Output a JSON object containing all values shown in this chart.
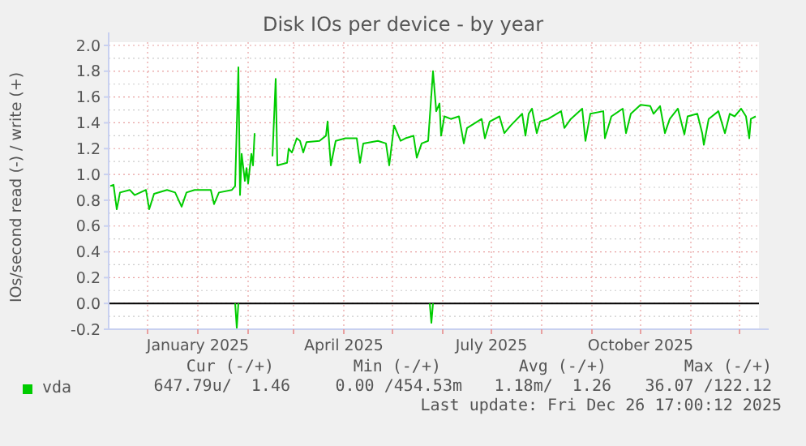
{
  "chart_data": {
    "type": "line",
    "title": "Disk IOs per device - by year",
    "ylabel": "IOs/second read (-) / write (+)",
    "xlim": [
      "2024-11-07",
      "2025-12-13"
    ],
    "ylim": [
      -0.2,
      2.0
    ],
    "yticks": [
      {
        "value": -0.2,
        "label": "-0.2"
      },
      {
        "value": 0,
        "label": "0.0"
      },
      0.2,
      0.4,
      0.6,
      0.8,
      {
        "value": 1,
        "label": "1.0"
      },
      1.2,
      1.4,
      1.6,
      1.8,
      {
        "value": 2,
        "label": "2.0"
      }
    ],
    "xticks": [
      {
        "value": "2024-12-01",
        "label": null
      },
      {
        "value": "2025-01-01",
        "label": "January 2025"
      },
      {
        "value": "2025-02-01",
        "label": null
      },
      {
        "value": "2025-03-01",
        "label": null
      },
      {
        "value": "2025-04-01",
        "label": "April 2025"
      },
      {
        "value": "2025-05-01",
        "label": null
      },
      {
        "value": "2025-06-01",
        "label": null
      },
      {
        "value": "2025-07-01",
        "label": "July 2025"
      },
      {
        "value": "2025-08-01",
        "label": null
      },
      {
        "value": "2025-09-01",
        "label": null
      },
      {
        "value": "2025-10-01",
        "label": "October 2025"
      },
      {
        "value": "2025-11-01",
        "label": null
      },
      {
        "value": "2025-12-01",
        "label": null
      }
    ],
    "grid": true,
    "legend": "bottom left",
    "line_style": "solid",
    "ref_lines": [
      {
        "axis": "y",
        "value": 0,
        "color": "#000000"
      }
    ],
    "series": [
      {
        "name": "vda",
        "color": "#00cc00",
        "x": [
          "2024-11-08",
          "2024-11-10",
          "2024-11-12",
          "2024-11-14",
          "2024-11-20",
          "2024-11-23",
          "2024-11-30",
          "2024-12-02",
          "2024-12-05",
          "2024-12-13",
          "2024-12-18",
          "2024-12-22",
          "2024-12-25",
          "2024-12-30",
          "2025-01-09",
          "2025-01-11",
          "2025-01-14",
          "2025-01-22",
          "2025-01-24",
          "2025-01-26",
          "2025-01-27",
          "2025-01-28",
          "2025-01-30",
          "2025-01-31",
          "2025-02-01",
          "2025-02-03",
          "2025-02-04",
          "2025-02-05",
          "2025-02-10",
          "2025-02-16",
          "2025-02-18",
          "2025-02-19",
          "2025-02-25",
          "2025-02-26",
          "2025-02-28",
          "2025-03-03",
          "2025-03-05",
          "2025-03-07",
          "2025-03-09",
          "2025-03-17",
          "2025-03-21",
          "2025-03-22",
          "2025-03-24",
          "2025-03-27",
          "2025-04-02",
          "2025-04-09",
          "2025-04-11",
          "2025-04-13",
          "2025-04-22",
          "2025-04-27",
          "2025-04-29",
          "2025-05-02",
          "2025-05-06",
          "2025-05-09",
          "2025-05-14",
          "2025-05-16",
          "2025-05-19",
          "2025-05-23",
          "2025-05-26",
          "2025-05-28",
          "2025-05-30",
          "2025-05-31",
          "2025-06-02",
          "2025-06-06",
          "2025-06-11",
          "2025-06-14",
          "2025-06-16",
          "2025-06-25",
          "2025-06-27",
          "2025-06-30",
          "2025-07-06",
          "2025-07-09",
          "2025-07-13",
          "2025-07-20",
          "2025-07-22",
          "2025-07-24",
          "2025-07-26",
          "2025-07-29",
          "2025-07-31",
          "2025-08-05",
          "2025-08-13",
          "2025-08-15",
          "2025-08-19",
          "2025-08-26",
          "2025-08-28",
          "2025-08-31",
          "2025-09-08",
          "2025-09-09",
          "2025-09-13",
          "2025-09-20",
          "2025-09-22",
          "2025-09-25",
          "2025-10-01",
          "2025-10-07",
          "2025-10-09",
          "2025-10-13",
          "2025-10-16",
          "2025-10-19",
          "2025-10-24",
          "2025-10-28",
          "2025-10-30",
          "2025-11-05",
          "2025-11-08",
          "2025-11-09",
          "2025-11-12",
          "2025-11-18",
          "2025-11-22",
          "2025-11-25",
          "2025-11-28",
          "2025-12-02",
          "2025-12-05",
          "2025-12-07",
          "2025-12-08",
          "2025-12-11"
        ],
        "values": [
          0.91,
          0.92,
          0.73,
          0.86,
          0.88,
          0.84,
          0.88,
          0.73,
          0.85,
          0.88,
          0.86,
          0.75,
          0.86,
          0.88,
          0.88,
          0.77,
          0.86,
          0.88,
          0.91,
          1.83,
          0.84,
          1.16,
          0.95,
          1.05,
          0.93,
          1.16,
          1.07,
          1.32,
          null,
          1.14,
          1.74,
          1.07,
          1.09,
          1.2,
          1.17,
          1.28,
          1.26,
          1.17,
          1.25,
          1.26,
          1.3,
          1.41,
          1.07,
          1.26,
          1.28,
          1.28,
          1.09,
          1.24,
          1.26,
          1.24,
          1.07,
          1.38,
          1.26,
          1.28,
          1.3,
          1.13,
          1.24,
          1.26,
          1.8,
          1.49,
          1.55,
          1.3,
          1.45,
          1.43,
          1.45,
          1.24,
          1.36,
          1.43,
          1.28,
          1.41,
          1.45,
          1.32,
          1.38,
          1.47,
          1.3,
          1.47,
          1.51,
          1.32,
          1.41,
          1.43,
          1.49,
          1.36,
          1.43,
          1.51,
          1.26,
          1.47,
          1.49,
          1.28,
          1.45,
          1.51,
          1.32,
          1.47,
          1.54,
          1.53,
          1.47,
          1.53,
          1.32,
          1.43,
          1.51,
          1.31,
          1.45,
          1.47,
          1.32,
          1.23,
          1.43,
          1.49,
          1.32,
          1.47,
          1.45,
          1.51,
          1.45,
          1.28,
          1.43,
          1.45
        ]
      },
      {
        "color": "#00cc00",
        "x": [
          "2025-01-24",
          "2025-01-25",
          "2025-01-26",
          "2025-03-01",
          "2025-05-24",
          "2025-05-25",
          "2025-05-26"
        ],
        "values": [
          0,
          -0.19,
          0,
          null,
          0,
          -0.15,
          0
        ]
      }
    ],
    "annotations": [
      "Cur (-/+)",
      "Min (-/+)",
      "Avg (-/+)",
      "Max (-/+)",
      "647.79u/  1.46",
      "0.00 /454.53m",
      "1.18m/  1.26",
      "36.07 /122.12",
      "Last update: Fri Dec 26 17:00:12 2025"
    ]
  }
}
